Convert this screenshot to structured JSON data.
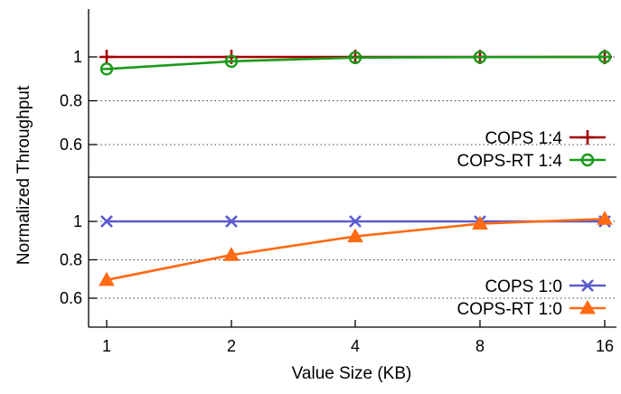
{
  "chart_data": {
    "type": "line",
    "xlabel": "Value Size (KB)",
    "ylabel": "Normalized Throughput",
    "x": [
      "1",
      "2",
      "4",
      "8",
      "16"
    ],
    "panels": [
      {
        "ylim": [
          0.45,
          1.2
        ],
        "yticks": [
          0.6,
          0.8,
          1
        ],
        "grid": true,
        "legend": "bottom-right",
        "series": [
          {
            "name": "COPS 1:4",
            "color": "#a50000",
            "marker": "plus",
            "values": [
              1.0,
              1.0,
              1.0,
              1.0,
              1.0
            ]
          },
          {
            "name": "COPS-RT 1:4",
            "color": "#1a9a1a",
            "marker": "circle-open",
            "values": [
              0.945,
              0.98,
              0.997,
              0.999,
              1.0
            ]
          }
        ]
      },
      {
        "ylim": [
          0.45,
          1.2
        ],
        "yticks": [
          0.6,
          0.8,
          1
        ],
        "grid": true,
        "legend": "bottom-right",
        "series": [
          {
            "name": "COPS 1:0",
            "color": "#5a5ad0",
            "marker": "x",
            "values": [
              1.0,
              1.0,
              1.0,
              1.0,
              1.0
            ]
          },
          {
            "name": "COPS-RT 1:0",
            "color": "#ff6a13",
            "marker": "triangle",
            "values": [
              0.695,
              0.825,
              0.922,
              0.988,
              1.013
            ]
          }
        ]
      }
    ]
  }
}
